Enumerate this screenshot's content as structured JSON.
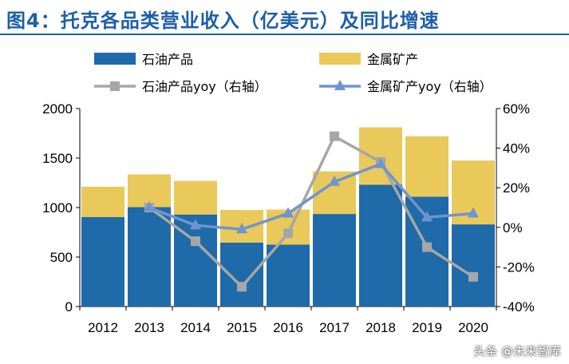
{
  "title": "图4：托克各品类营业收入（亿美元）及同比增速",
  "watermark": "头条 @未来智库",
  "colors": {
    "petroleum_bar": "#1f6aa8",
    "metals_bar": "#e8c95a",
    "petroleum_yoy_line": "#a6a6a6",
    "metals_yoy_line": "#7094cf"
  },
  "chart_data": {
    "type": "bar",
    "stacked": true,
    "categories": [
      "2012",
      "2013",
      "2014",
      "2015",
      "2016",
      "2017",
      "2018",
      "2019",
      "2020"
    ],
    "series": [
      {
        "name": "石油产品",
        "type": "bar",
        "axis": "left",
        "values": [
          905,
          1005,
          930,
          645,
          625,
          935,
          1230,
          1110,
          830
        ]
      },
      {
        "name": "金属矿产",
        "type": "bar",
        "axis": "left",
        "values": [
          305,
          330,
          340,
          330,
          355,
          430,
          580,
          610,
          645
        ]
      },
      {
        "name": "石油产品yoy（右轴）",
        "type": "line",
        "axis": "right",
        "marker": "square",
        "values": [
          null,
          10,
          -7,
          -30,
          -3,
          46,
          33,
          -10,
          -25
        ]
      },
      {
        "name": "金属矿产yoy（右轴）",
        "type": "line",
        "axis": "right",
        "marker": "triangle",
        "values": [
          null,
          10,
          1,
          -1,
          7,
          23,
          32,
          5,
          7
        ]
      }
    ],
    "y_left": {
      "ylim": [
        0,
        2000
      ],
      "ticks": [
        "0",
        "500",
        "1000",
        "1500",
        "2000"
      ]
    },
    "y_right": {
      "ylim": [
        -40,
        60
      ],
      "ticks": [
        "-40%",
        "-20%",
        "0%",
        "20%",
        "40%",
        "60%"
      ]
    },
    "legend_position": "top"
  }
}
